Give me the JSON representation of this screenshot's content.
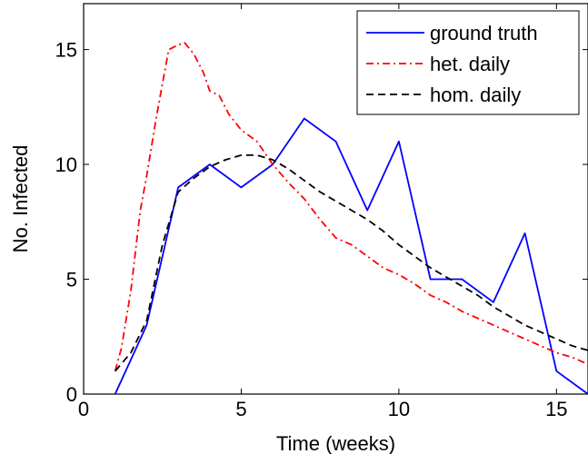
{
  "chart_data": {
    "type": "line",
    "title": "",
    "xlabel": "Time (weeks)",
    "ylabel": "No. Infected",
    "xlim": [
      0,
      16
    ],
    "ylim": [
      0,
      17
    ],
    "xticks": [
      0,
      5,
      10,
      15
    ],
    "yticks": [
      0,
      5,
      10,
      15
    ],
    "grid": false,
    "legend_position": "top-right",
    "series": [
      {
        "name": "ground truth",
        "color": "#0000ff",
        "style": "solid",
        "x": [
          1,
          2,
          3,
          4,
          5,
          6,
          7,
          8,
          9,
          10,
          11,
          12,
          13,
          14,
          15,
          16
        ],
        "y": [
          0,
          3,
          9,
          10,
          9,
          10,
          12,
          11,
          8,
          11,
          5,
          5,
          4,
          7,
          1,
          0
        ]
      },
      {
        "name": "het. daily",
        "color": "#ff0000",
        "style": "dashdot",
        "x": [
          1,
          1.2,
          1.5,
          1.8,
          2.0,
          2.3,
          2.5,
          2.7,
          3.0,
          3.2,
          3.5,
          3.8,
          4.0,
          4.3,
          4.6,
          5.0,
          5.5,
          6.0,
          6.5,
          7.0,
          7.5,
          8.0,
          8.5,
          9.0,
          9.5,
          10.0,
          10.5,
          11.0,
          11.5,
          12.0,
          12.5,
          13.0,
          13.5,
          14.0,
          14.5,
          15.0,
          15.5,
          16.0
        ],
        "y": [
          1.0,
          2.0,
          4.5,
          8.0,
          9.5,
          12.0,
          13.5,
          15.0,
          15.2,
          15.3,
          14.8,
          14.0,
          13.2,
          13.0,
          12.2,
          11.5,
          11.0,
          10.0,
          9.2,
          8.5,
          7.6,
          6.8,
          6.5,
          6.0,
          5.5,
          5.2,
          4.8,
          4.3,
          4.0,
          3.6,
          3.3,
          3.0,
          2.7,
          2.4,
          2.1,
          1.8,
          1.6,
          1.3
        ]
      },
      {
        "name": "hom. daily",
        "color": "#000000",
        "style": "dashed",
        "x": [
          1,
          1.5,
          2.0,
          2.5,
          3.0,
          3.5,
          4.0,
          4.5,
          5.0,
          5.5,
          6.0,
          6.5,
          7.0,
          7.5,
          8.0,
          8.5,
          9.0,
          9.5,
          10.0,
          10.5,
          11.0,
          11.5,
          12.0,
          12.5,
          13.0,
          13.5,
          14.0,
          14.5,
          15.0,
          15.5,
          16.0
        ],
        "y": [
          1.0,
          1.8,
          3.2,
          6.5,
          8.8,
          9.4,
          9.9,
          10.2,
          10.4,
          10.4,
          10.2,
          9.8,
          9.3,
          8.8,
          8.4,
          8.0,
          7.6,
          7.1,
          6.5,
          6.0,
          5.5,
          5.1,
          4.7,
          4.3,
          3.8,
          3.4,
          3.0,
          2.7,
          2.4,
          2.1,
          1.9
        ]
      }
    ]
  }
}
